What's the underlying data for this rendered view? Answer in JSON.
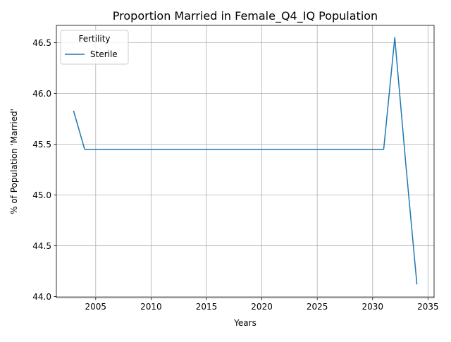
{
  "chart_data": {
    "type": "line",
    "title": "Proportion Married in Female_Q4_IQ Population",
    "xlabel": "Years",
    "ylabel": "% of Population 'Married'",
    "xlim": [
      2001.45,
      2035.55
    ],
    "ylim": [
      43.99,
      46.67
    ],
    "xticks": [
      2005,
      2010,
      2015,
      2020,
      2025,
      2030,
      2035
    ],
    "yticks": [
      44.0,
      44.5,
      45.0,
      45.5,
      46.0,
      46.5
    ],
    "xtick_labels": [
      "2005",
      "2010",
      "2015",
      "2020",
      "2025",
      "2030",
      "2035"
    ],
    "ytick_labels": [
      "44.0",
      "44.5",
      "45.0",
      "45.5",
      "46.0",
      "46.5"
    ],
    "grid": true,
    "legend": {
      "title": "Fertility",
      "placement": "upper-left"
    },
    "series": [
      {
        "name": "Sterile",
        "color": "#1f77b4",
        "x": [
          2003,
          2004,
          2005,
          2006,
          2007,
          2008,
          2009,
          2010,
          2011,
          2012,
          2013,
          2014,
          2015,
          2016,
          2017,
          2018,
          2019,
          2020,
          2021,
          2022,
          2023,
          2024,
          2025,
          2026,
          2027,
          2028,
          2029,
          2030,
          2031,
          2032,
          2033,
          2034
        ],
        "y": [
          45.83,
          45.45,
          45.45,
          45.45,
          45.45,
          45.45,
          45.45,
          45.45,
          45.45,
          45.45,
          45.45,
          45.45,
          45.45,
          45.45,
          45.45,
          45.45,
          45.45,
          45.45,
          45.45,
          45.45,
          45.45,
          45.45,
          45.45,
          45.45,
          45.45,
          45.45,
          45.45,
          45.45,
          45.45,
          46.55,
          45.3,
          44.12
        ]
      }
    ]
  }
}
